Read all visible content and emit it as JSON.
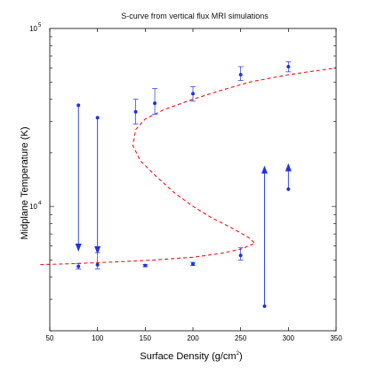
{
  "chart_data": {
    "type": "scatter",
    "title": "S-curve from vertical flux MRI simulations",
    "xlabel": "Surface Density (g/cm",
    "xlabel_sup": "2",
    "xlabel_end": ")",
    "ylabel": "Midplane Temperature (K)",
    "xlim": [
      50,
      350
    ],
    "ylim": [
      2000,
      100000
    ],
    "yscale": "log",
    "x_ticks": [
      50,
      100,
      150,
      200,
      250,
      300,
      350
    ],
    "y_ticks": [
      {
        "value": 10000,
        "base": "10",
        "exp": "4"
      },
      {
        "value": 100000,
        "base": "10",
        "exp": "5"
      }
    ],
    "grid": false,
    "points": [
      {
        "x": 80,
        "y": 4600,
        "err_lo": 4450,
        "err_hi": 4780
      },
      {
        "x": 100,
        "y": 4700,
        "err_lo": 4450,
        "err_hi": 5500
      },
      {
        "x": 140,
        "y": 34000,
        "err_lo": 29000,
        "err_hi": 40000
      },
      {
        "x": 150,
        "y": 4650,
        "err_lo": 4580,
        "err_hi": 4720
      },
      {
        "x": 160,
        "y": 38000,
        "err_lo": 33000,
        "err_hi": 46000
      },
      {
        "x": 200,
        "y": 4750,
        "err_lo": 4650,
        "err_hi": 4850
      },
      {
        "x": 200,
        "y": 43000,
        "err_lo": 39000,
        "err_hi": 47000
      },
      {
        "x": 250,
        "y": 5300,
        "err_lo": 5000,
        "err_hi": 5850
      },
      {
        "x": 250,
        "y": 55000,
        "err_lo": 51000,
        "err_hi": 61000
      },
      {
        "x": 300,
        "y": 61000,
        "err_lo": 57000,
        "err_hi": 65000
      },
      {
        "x": 275,
        "y": 2750
      },
      {
        "x": 300,
        "y": 12500
      },
      {
        "x": 80,
        "y": 37000
      },
      {
        "x": 100,
        "y": 31500
      }
    ],
    "arrows": [
      {
        "x": 80,
        "y_from": 37000,
        "y_to": 5900
      },
      {
        "x": 100,
        "y_from": 31500,
        "y_to": 5700
      },
      {
        "x": 275,
        "y_from": 2750,
        "y_to": 16000
      },
      {
        "x": 300,
        "y_from": 12500,
        "y_to": 16500
      }
    ],
    "s_curve": {
      "name": "",
      "style": "dashed",
      "points": [
        [
          40,
          4700
        ],
        [
          80,
          4780
        ],
        [
          120,
          4880
        ],
        [
          160,
          5000
        ],
        [
          200,
          5180
        ],
        [
          230,
          5450
        ],
        [
          250,
          5750
        ],
        [
          260,
          6050
        ],
        [
          265,
          6200
        ],
        [
          258,
          6700
        ],
        [
          240,
          7600
        ],
        [
          220,
          8600
        ],
        [
          200,
          10000
        ],
        [
          180,
          12000
        ],
        [
          160,
          15000
        ],
        [
          145,
          18000
        ],
        [
          137,
          22000
        ],
        [
          140,
          27000
        ],
        [
          150,
          31000
        ],
        [
          170,
          35000
        ],
        [
          200,
          40000
        ],
        [
          230,
          45000
        ],
        [
          260,
          50000
        ],
        [
          300,
          55000
        ],
        [
          350,
          60000
        ]
      ]
    },
    "colors": {
      "points": "#1e32e6",
      "curve": "#e8181e",
      "axes": "#000000"
    }
  }
}
